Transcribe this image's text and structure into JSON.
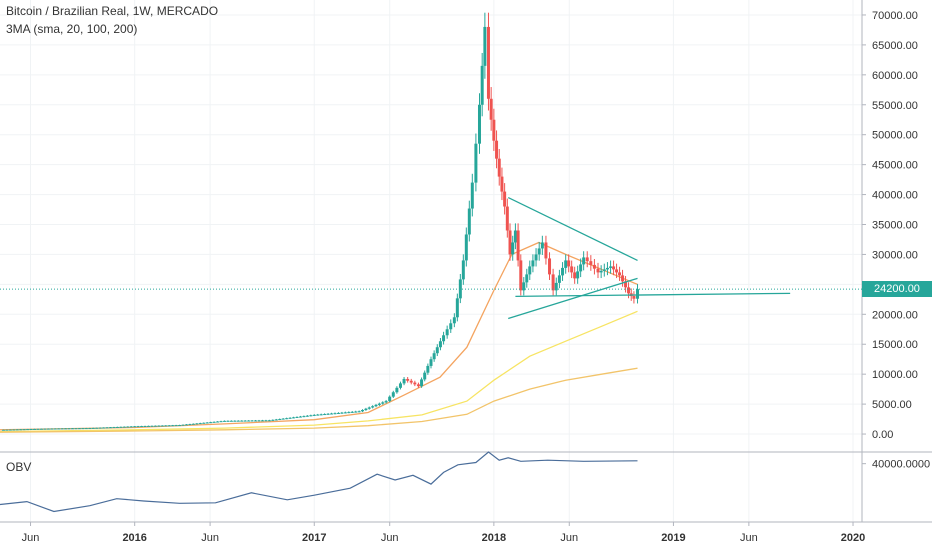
{
  "header": {
    "symbol_title": "Bitcoin / Brazilian Real, 1W, MERCADO",
    "indicator_label": "3MA (sma, 20, 100, 200)",
    "obv_label": "OBV"
  },
  "current_price": {
    "label": "24200.00",
    "value": 24200,
    "color": "#26a69a"
  },
  "colors": {
    "up": "#26a69a",
    "down": "#ef5350",
    "ma20": "#f4a460",
    "ma100": "#f7e463",
    "ma200": "#f2c46a",
    "obv": "#4a6d9a",
    "axis_text": "#333333",
    "grid": "#f0f3f5"
  },
  "chart_data": [
    {
      "type": "line",
      "title": "Bitcoin / Brazilian Real, 1W, MERCADO",
      "subtitle": "3MA (sma, 20, 100, 200)",
      "x_axis": {
        "ticks": [
          "Jun",
          "2016",
          "Jun",
          "2017",
          "Jun",
          "2018",
          "Jun",
          "2019",
          "Jun",
          "2020"
        ],
        "tick_dates": [
          2015.42,
          2016.0,
          2016.42,
          2017.0,
          2017.42,
          2018.0,
          2018.42,
          2019.0,
          2019.42,
          2020.0
        ],
        "range": [
          2015.25,
          2020.05
        ]
      },
      "y_axis": {
        "ticks": [
          "0.00",
          "5000.00",
          "10000.00",
          "15000.00",
          "20000.00",
          "25000.00",
          "30000.00",
          "35000.00",
          "40000.00",
          "45000.00",
          "50000.00",
          "55000.00",
          "60000.00",
          "65000.00",
          "70000.00"
        ],
        "range": [
          -3000,
          72500
        ],
        "side": "right"
      },
      "series": [
        {
          "kind": "price",
          "x": [
            2015.25,
            2015.5,
            2015.75,
            2016.0,
            2016.25,
            2016.5,
            2016.75,
            2017.0,
            2017.25,
            2017.4,
            2017.5,
            2017.58,
            2017.65,
            2017.72,
            2017.78,
            2017.83,
            2017.88,
            2017.92,
            2017.95,
            2017.97,
            2018.0,
            2018.03,
            2018.06,
            2018.09,
            2018.12,
            2018.15,
            2018.2,
            2018.27,
            2018.33,
            2018.4,
            2018.45,
            2018.5,
            2018.58,
            2018.65,
            2018.7,
            2018.75,
            2018.78,
            2018.8
          ],
          "y": [
            700,
            900,
            1000,
            1300,
            1500,
            2200,
            2300,
            3200,
            3800,
            5500,
            9200,
            8000,
            12500,
            16500,
            19500,
            29000,
            42000,
            55000,
            68000,
            56000,
            49000,
            43000,
            38000,
            30000,
            34000,
            24000,
            28000,
            32000,
            24000,
            29000,
            26000,
            29500,
            27000,
            28000,
            26500,
            23500,
            22600,
            24200
          ]
        },
        {
          "kind": "ma20",
          "x": [
            2015.25,
            2016.0,
            2016.5,
            2017.0,
            2017.3,
            2017.5,
            2017.7,
            2017.85,
            2018.0,
            2018.1,
            2018.25,
            2018.4,
            2018.6,
            2018.8
          ],
          "y": [
            700,
            1100,
            1700,
            2400,
            3600,
            6500,
            9500,
            14500,
            24000,
            30000,
            32000,
            30000,
            27500,
            25000
          ]
        },
        {
          "kind": "ma100",
          "x": [
            2015.25,
            2016.0,
            2016.5,
            2017.0,
            2017.3,
            2017.6,
            2017.85,
            2018.0,
            2018.2,
            2018.4,
            2018.6,
            2018.8
          ],
          "y": [
            400,
            700,
            1000,
            1500,
            2200,
            3200,
            5500,
            9000,
            13000,
            15500,
            18000,
            20500
          ]
        },
        {
          "kind": "ma200",
          "x": [
            2015.25,
            2016.0,
            2016.5,
            2017.0,
            2017.3,
            2017.6,
            2017.85,
            2018.0,
            2018.2,
            2018.4,
            2018.6,
            2018.8
          ],
          "y": [
            300,
            500,
            700,
            1000,
            1400,
            2100,
            3300,
            5500,
            7500,
            9000,
            10000,
            11000
          ]
        }
      ],
      "annotations": [
        {
          "kind": "triangle-upper",
          "x": [
            2018.08,
            2018.8
          ],
          "y": [
            39500,
            29000
          ]
        },
        {
          "kind": "triangle-lower",
          "x": [
            2018.08,
            2018.8
          ],
          "y": [
            19300,
            26000
          ]
        },
        {
          "kind": "support",
          "x": [
            2018.12,
            2019.65
          ],
          "y": [
            23000,
            23500
          ]
        }
      ]
    },
    {
      "type": "line",
      "title": "OBV",
      "y_axis": {
        "ticks": [
          "40000.0000"
        ],
        "range": [
          -60000,
          60000
        ],
        "side": "right"
      },
      "series": [
        {
          "kind": "obv",
          "x": [
            2015.25,
            2015.4,
            2015.55,
            2015.75,
            2015.9,
            2016.05,
            2016.25,
            2016.45,
            2016.65,
            2016.85,
            2017.0,
            2017.2,
            2017.35,
            2017.45,
            2017.55,
            2017.65,
            2017.72,
            2017.8,
            2017.9,
            2017.97,
            2018.03,
            2018.08,
            2018.15,
            2018.3,
            2018.5,
            2018.8
          ],
          "y": [
            -30000,
            -25000,
            -42000,
            -32000,
            -20000,
            -24000,
            -28000,
            -27000,
            -10000,
            -22000,
            -14000,
            -2000,
            22000,
            12000,
            20000,
            5000,
            25000,
            38000,
            42000,
            60000,
            46000,
            50000,
            44000,
            46000,
            44000,
            45000
          ]
        }
      ]
    }
  ]
}
